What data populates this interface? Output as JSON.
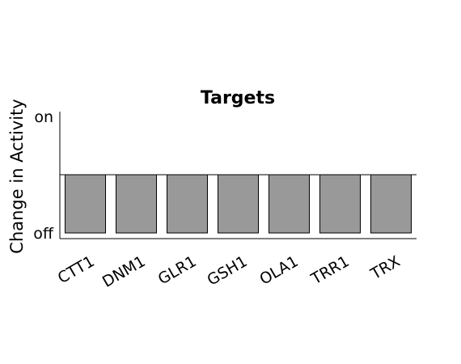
{
  "chart_data": {
    "type": "bar",
    "title": "Targets",
    "ylabel": "Change in Activity",
    "xlabel": "",
    "ytick_labels": [
      "off",
      "on"
    ],
    "ylim": [
      0,
      1
    ],
    "reference_line": 0.5,
    "categories": [
      "CTT1",
      "DNM1",
      "GLR1",
      "GSH1",
      "OLA1",
      "TRR1",
      "TRX"
    ],
    "values": [
      0.5,
      0.5,
      0.5,
      0.5,
      0.5,
      0.5,
      0.5
    ],
    "bar_color": "#999999",
    "grid": false,
    "legend": "none"
  }
}
